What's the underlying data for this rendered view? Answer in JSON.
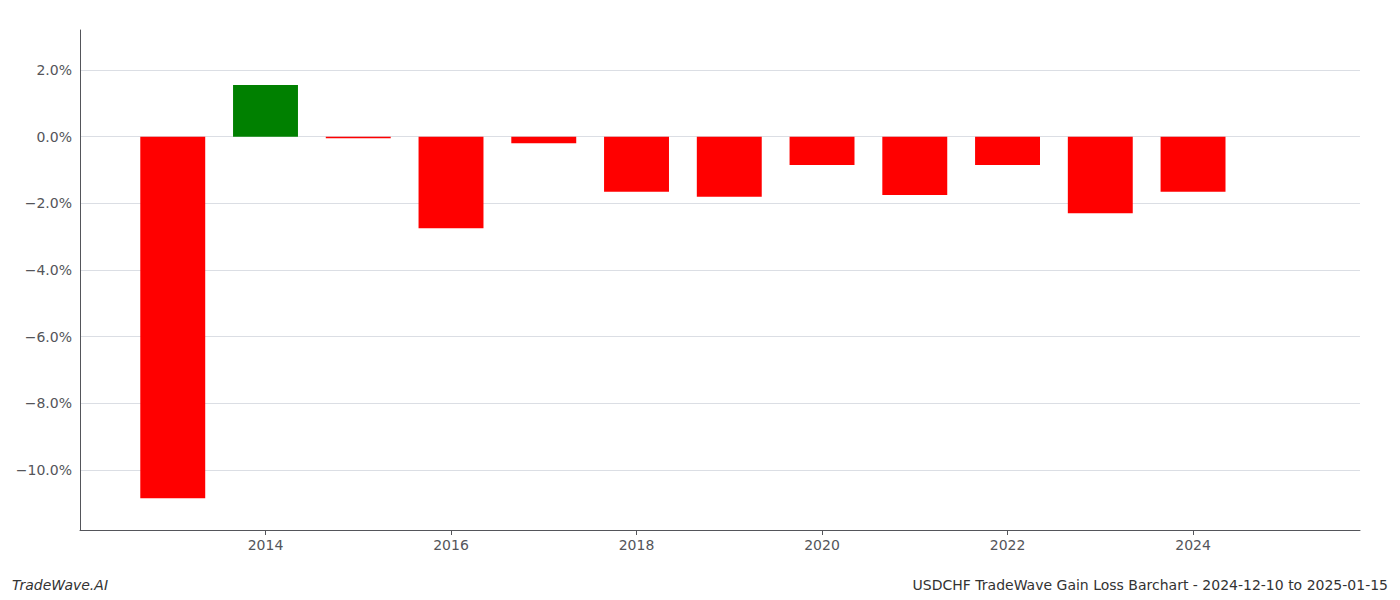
{
  "chart_data": {
    "type": "bar",
    "x": [
      2013,
      2014,
      2015,
      2016,
      2017,
      2018,
      2019,
      2020,
      2021,
      2022,
      2023,
      2024
    ],
    "values": [
      -10.85,
      1.55,
      -0.05,
      -2.75,
      -0.2,
      -1.65,
      -1.8,
      -0.85,
      -1.75,
      -0.85,
      -2.3,
      -1.65
    ],
    "colors": [
      "#ff0000",
      "#008000",
      "#ff0000",
      "#ff0000",
      "#ff0000",
      "#ff0000",
      "#ff0000",
      "#ff0000",
      "#ff0000",
      "#ff0000",
      "#ff0000",
      "#ff0000"
    ],
    "xlim": [
      2012.0,
      2025.8
    ],
    "xticks": [
      2014,
      2016,
      2018,
      2020,
      2022,
      2024
    ],
    "ylim": [
      -11.8,
      3.2
    ],
    "yticks": [
      {
        "value": 2.0,
        "label": "2.0%"
      },
      {
        "value": 0.0,
        "label": "0.0%"
      },
      {
        "value": -2.0,
        "label": "−2.0%"
      },
      {
        "value": -4.0,
        "label": "−4.0%"
      },
      {
        "value": -6.0,
        "label": "−6.0%"
      },
      {
        "value": -8.0,
        "label": "−8.0%"
      },
      {
        "value": -10.0,
        "label": "−10.0%"
      }
    ],
    "grid": true,
    "annotations": [
      "TradeWave.AI",
      "USDCHF TradeWave Gain Loss Barchart - 2024-12-10 to 2025-01-15"
    ]
  }
}
